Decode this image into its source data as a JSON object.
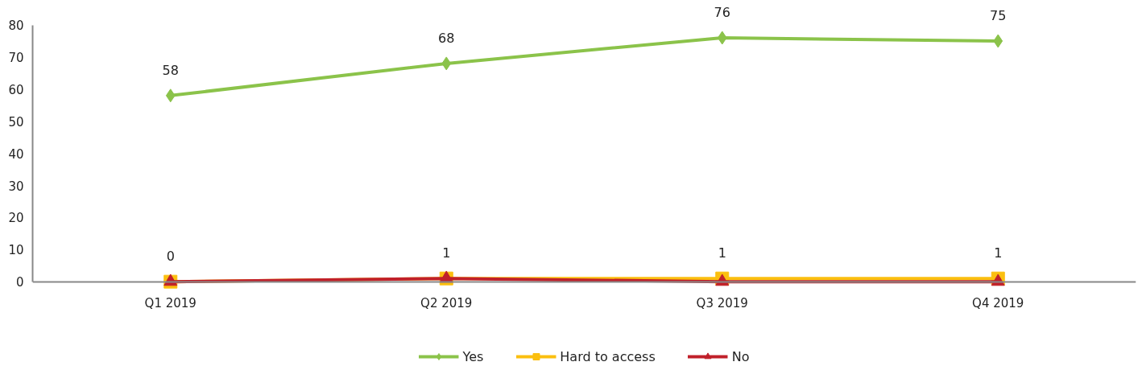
{
  "chart_data": {
    "type": "line",
    "categories": [
      "Q1 2019",
      "Q2 2019",
      "Q3 2019",
      "Q4 2019"
    ],
    "series": [
      {
        "name": "Yes",
        "color": "#8bc34a",
        "marker": "diamond",
        "values": [
          58,
          68,
          76,
          75
        ],
        "value_labels": [
          "58",
          "68",
          "76",
          "75"
        ]
      },
      {
        "name": "Hard to access",
        "color": "#fbbf0f",
        "marker": "square",
        "values": [
          0,
          1,
          1,
          1
        ],
        "value_labels": [
          "0",
          "1",
          "1",
          "1"
        ]
      },
      {
        "name": "No",
        "color": "#c0202a",
        "marker": "triangle",
        "values": [
          0,
          1,
          0,
          0
        ]
      }
    ],
    "ylim": [
      0,
      80
    ],
    "yticks": [
      0,
      10,
      20,
      30,
      40,
      50,
      60,
      70,
      80
    ],
    "grid": false,
    "legend": "bottom",
    "line_style": "solid"
  }
}
